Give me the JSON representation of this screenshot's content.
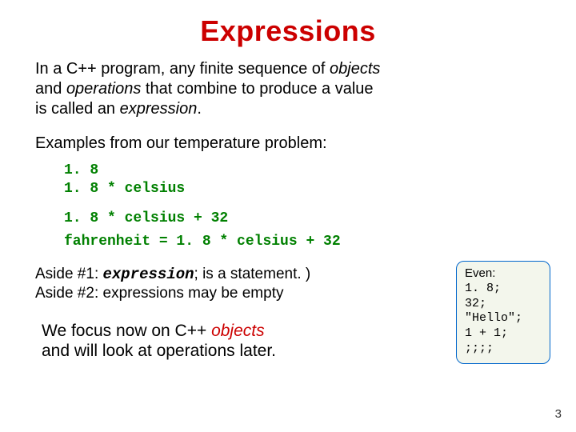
{
  "title": "Expressions",
  "intro": {
    "l1a": "In a C++ program, any finite sequence of ",
    "l1b": "objects",
    "l2a": "and ",
    "l2b": "operations",
    "l2c": " that combine to produce a value",
    "l3a": "is called an ",
    "l3b": "expression",
    "l3c": "."
  },
  "examples_lead": "Examples from our temperature problem:",
  "code1": {
    "a": "1. 8",
    "b": "1. 8 * celsius"
  },
  "code2": {
    "a": "1. 8 * celsius + 32",
    "b": "fahrenheit = 1. 8 * celsius + 32"
  },
  "aside1": {
    "pre": "Aside #1: ",
    "expr": "expression",
    "post": "; is a statement. )"
  },
  "aside2": "Aside #2: expressions may be empty",
  "callout": {
    "even": "Even:",
    "l1": "1. 8;",
    "l2": "32;",
    "l3": "\"Hello\";",
    "l4": "1 + 1;",
    "l5": ";;;;"
  },
  "focus": {
    "l1a": "We focus now on C++ ",
    "l1b": "objects",
    "l2": "and will look at operations later."
  },
  "pagenum": "3",
  "colors": {
    "title": "#cc0000",
    "code": "#008000",
    "callout_border": "#0066cc",
    "callout_bg": "#f3f6ec"
  },
  "fontsizes": {
    "title": 36,
    "body": 20,
    "code": 18,
    "callout": 15,
    "pagenum": 15
  }
}
